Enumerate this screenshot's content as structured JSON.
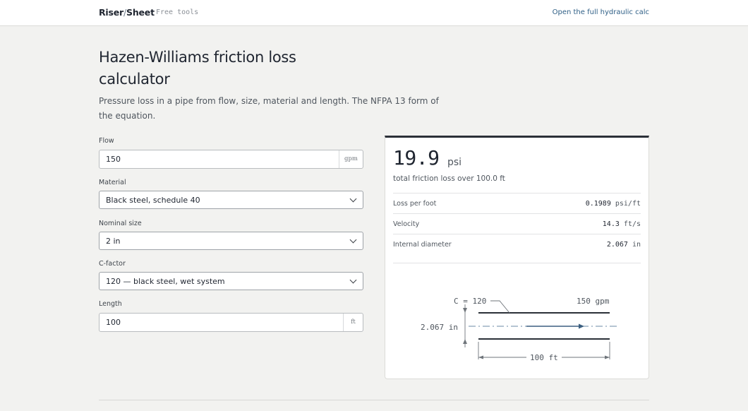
{
  "header": {
    "brand_left": "Riser",
    "brand_slash": "/",
    "brand_right": "Sheet",
    "tag": "Free tools",
    "link": "Open the full hydraulic calc"
  },
  "page": {
    "title": "Hazen-Williams friction loss calculator",
    "subtitle": "Pressure loss in a pipe from flow, size, material and length. The NFPA 13 form of the equation."
  },
  "form": {
    "flow": {
      "label": "Flow",
      "value": "150",
      "unit": "gpm"
    },
    "material": {
      "label": "Material",
      "value": "Black steel, schedule 40"
    },
    "size": {
      "label": "Nominal size",
      "value": "2 in"
    },
    "cfactor": {
      "label": "C-factor",
      "value": "120 — black steel, wet system"
    },
    "length": {
      "label": "Length",
      "value": "100",
      "unit": "ft"
    }
  },
  "result": {
    "value": "19.9",
    "unit": "psi",
    "summary": "total friction loss over 100.0 ft",
    "rows": [
      {
        "label": "Loss per foot",
        "value": "0.1989",
        "unit": "psi/ft"
      },
      {
        "label": "Velocity",
        "value": "14.3",
        "unit": "ft/s"
      },
      {
        "label": "Internal diameter",
        "value": "2.067",
        "unit": "in"
      }
    ]
  },
  "diagram": {
    "c_label": "C = 120",
    "flow_label": "150 gpm",
    "diameter_label": "2.067 in",
    "length_label": "100 ft",
    "line_color": "#2b3038",
    "flow_color": "#3b5f80"
  }
}
